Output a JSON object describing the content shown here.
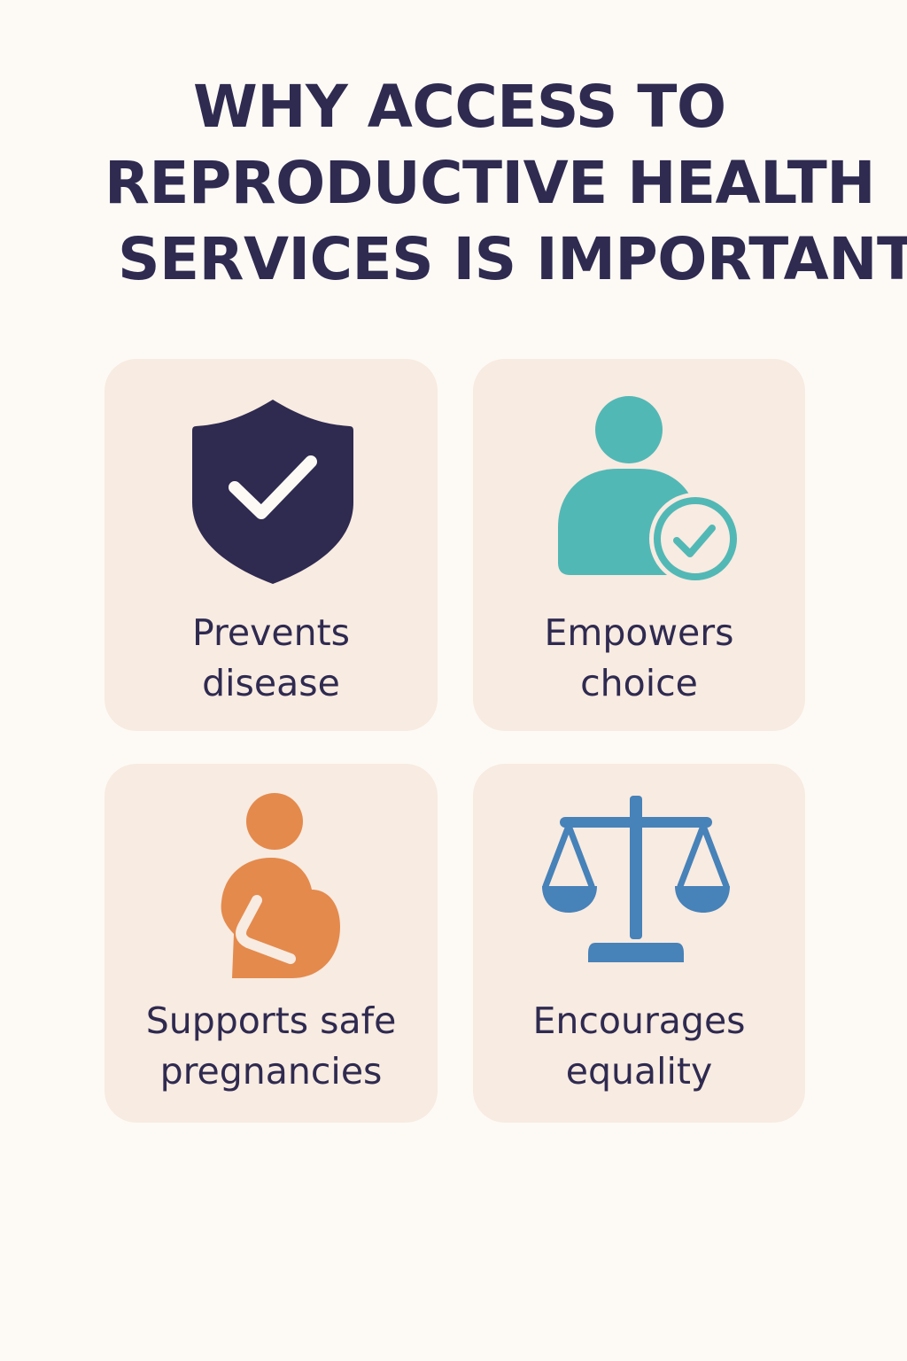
{
  "title": {
    "line1": "WHY ACCESS TO",
    "line2": "REPRODUCTIVE HEALTH",
    "line3": "SERVICES IS IMPORTANT"
  },
  "cards": [
    {
      "icon": "shield-check-icon",
      "line1": "Prevents",
      "line2": "disease",
      "color": "#2f2a50"
    },
    {
      "icon": "person-check-icon",
      "line1": "Empowers",
      "line2": "choice",
      "color": "#52b8b6"
    },
    {
      "icon": "pregnant-person-icon",
      "line1": "Supports safe",
      "line2": "pregnancies",
      "color": "#e48a4d"
    },
    {
      "icon": "scales-icon",
      "line1": "Encourages",
      "line2": "equality",
      "color": "#4782b9"
    }
  ],
  "colors": {
    "background": "#fdfaf5",
    "card": "#f8ebe1",
    "text": "#2f2a50"
  }
}
